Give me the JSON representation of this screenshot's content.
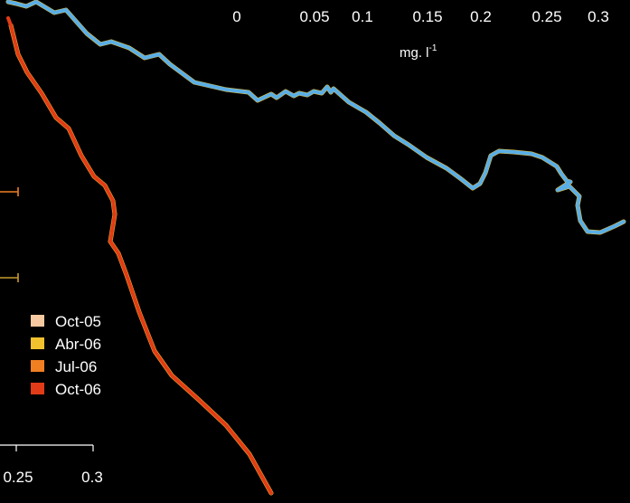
{
  "chart_data": {
    "type": "line",
    "top_axis": {
      "tick_labels": [
        "0",
        "0.05",
        "0.1",
        "0.15",
        "0.2",
        "0.25",
        "0.3"
      ],
      "ticks": [
        0,
        0.05,
        0.1,
        0.15,
        0.2,
        0.25,
        0.3
      ],
      "unit_base": "mg. l",
      "unit_exponent": "-1"
    },
    "bottom_axis": {
      "tick_labels": [
        "0.25",
        "0.3"
      ],
      "ticks": [
        0.25,
        0.3
      ]
    },
    "legend": {
      "entries": [
        {
          "label": "Oct-05",
          "color": "#f7c9a0"
        },
        {
          "label": "Abr-06",
          "color": "#f2c12e"
        },
        {
          "label": "Jul-06",
          "color": "#f07f22"
        },
        {
          "label": "Oct-06",
          "color": "#e23b17"
        }
      ]
    },
    "series": [
      {
        "color": "#f2c12e",
        "values": [
          [
            0.009,
            2
          ],
          [
            0.018,
            4
          ],
          [
            0.029,
            7
          ],
          [
            0.04,
            2
          ],
          [
            0.06,
            14
          ],
          [
            0.073,
            11
          ],
          [
            0.096,
            37
          ],
          [
            0.111,
            49
          ],
          [
            0.123,
            46
          ],
          [
            0.143,
            53
          ],
          [
            0.16,
            64
          ],
          [
            0.176,
            60
          ],
          [
            0.188,
            71
          ],
          [
            0.215,
            91
          ],
          [
            0.25,
            99
          ],
          [
            0.275,
            102
          ],
          [
            0.285,
            111
          ],
          [
            0.3,
            104
          ],
          [
            0.306,
            108
          ],
          [
            0.316,
            101
          ],
          [
            0.325,
            106
          ],
          [
            0.331,
            103
          ],
          [
            0.34,
            105
          ],
          [
            0.347,
            101
          ],
          [
            0.356,
            103
          ],
          [
            0.362,
            96
          ],
          [
            0.366,
            102
          ],
          [
            0.369,
            98
          ],
          [
            0.386,
            113
          ],
          [
            0.405,
            124
          ],
          [
            0.42,
            136
          ],
          [
            0.436,
            150
          ],
          [
            0.452,
            160
          ],
          [
            0.472,
            174
          ],
          [
            0.494,
            186
          ],
          [
            0.509,
            197
          ],
          [
            0.523,
            208
          ],
          [
            0.531,
            203
          ],
          [
            0.537,
            191
          ],
          [
            0.543,
            172
          ],
          [
            0.552,
            167
          ],
          [
            0.568,
            168
          ],
          [
            0.588,
            170
          ],
          [
            0.6,
            174
          ],
          [
            0.616,
            184
          ],
          [
            0.621,
            192
          ],
          [
            0.627,
            200
          ],
          [
            0.631,
            201
          ],
          [
            0.617,
            210
          ],
          [
            0.63,
            206
          ],
          [
            0.641,
            217
          ],
          [
            0.639,
            227
          ],
          [
            0.642,
            244
          ],
          [
            0.65,
            256
          ],
          [
            0.664,
            257
          ],
          [
            0.68,
            250
          ],
          [
            0.69,
            245
          ]
        ]
      },
      {
        "color": "#5aaee6",
        "values": [
          [
            0.009,
            2
          ],
          [
            0.018,
            4
          ],
          [
            0.029,
            7
          ],
          [
            0.04,
            2
          ],
          [
            0.06,
            14
          ],
          [
            0.073,
            11
          ],
          [
            0.096,
            37
          ],
          [
            0.111,
            49
          ],
          [
            0.123,
            46
          ],
          [
            0.143,
            53
          ],
          [
            0.16,
            64
          ],
          [
            0.176,
            60
          ],
          [
            0.188,
            71
          ],
          [
            0.215,
            91
          ],
          [
            0.25,
            99
          ],
          [
            0.275,
            102
          ],
          [
            0.285,
            111
          ],
          [
            0.3,
            104
          ],
          [
            0.306,
            108
          ],
          [
            0.316,
            101
          ],
          [
            0.325,
            106
          ],
          [
            0.331,
            103
          ],
          [
            0.34,
            105
          ],
          [
            0.347,
            101
          ],
          [
            0.356,
            103
          ],
          [
            0.362,
            96
          ],
          [
            0.366,
            102
          ],
          [
            0.369,
            98
          ],
          [
            0.386,
            113
          ],
          [
            0.405,
            124
          ],
          [
            0.42,
            136
          ],
          [
            0.436,
            150
          ],
          [
            0.452,
            160
          ],
          [
            0.472,
            174
          ],
          [
            0.494,
            186
          ],
          [
            0.509,
            197
          ],
          [
            0.523,
            208
          ],
          [
            0.531,
            203
          ],
          [
            0.537,
            191
          ],
          [
            0.543,
            172
          ],
          [
            0.552,
            167
          ],
          [
            0.568,
            168
          ],
          [
            0.588,
            170
          ],
          [
            0.6,
            174
          ],
          [
            0.616,
            184
          ],
          [
            0.621,
            192
          ],
          [
            0.627,
            200
          ],
          [
            0.631,
            201
          ],
          [
            0.617,
            210
          ],
          [
            0.63,
            206
          ],
          [
            0.641,
            217
          ],
          [
            0.639,
            227
          ],
          [
            0.642,
            244
          ],
          [
            0.65,
            256
          ],
          [
            0.664,
            257
          ],
          [
            0.68,
            250
          ],
          [
            0.69,
            245
          ]
        ]
      },
      {
        "color": "#f2c12e",
        "values": [
          [
            0.012,
            28
          ],
          [
            0.02,
            60
          ],
          [
            0.03,
            80
          ],
          [
            0.046,
            103
          ],
          [
            0.062,
            130
          ],
          [
            0.076,
            142
          ],
          [
            0.09,
            172
          ],
          [
            0.104,
            195
          ],
          [
            0.116,
            205
          ],
          [
            0.125,
            222
          ],
          [
            0.127,
            237
          ],
          [
            0.122,
            267
          ],
          [
            0.131,
            280
          ],
          [
            0.14,
            304
          ],
          [
            0.154,
            345
          ],
          [
            0.171,
            388
          ],
          [
            0.19,
            415
          ],
          [
            0.22,
            442
          ],
          [
            0.25,
            470
          ],
          [
            0.276,
            502
          ],
          [
            0.3,
            545
          ]
        ]
      },
      {
        "color": "#e23b17",
        "values": [
          [
            0.009,
            20
          ],
          [
            0.012,
            28
          ],
          [
            0.02,
            60
          ],
          [
            0.03,
            80
          ],
          [
            0.046,
            103
          ],
          [
            0.062,
            130
          ],
          [
            0.076,
            142
          ],
          [
            0.09,
            172
          ],
          [
            0.104,
            195
          ],
          [
            0.116,
            205
          ],
          [
            0.125,
            222
          ],
          [
            0.127,
            237
          ],
          [
            0.122,
            267
          ],
          [
            0.131,
            280
          ],
          [
            0.14,
            304
          ],
          [
            0.154,
            345
          ],
          [
            0.171,
            388
          ],
          [
            0.19,
            415
          ],
          [
            0.22,
            442
          ],
          [
            0.25,
            470
          ],
          [
            0.276,
            502
          ],
          [
            0.3,
            545
          ]
        ]
      }
    ],
    "left_markers": [
      {
        "level": 212,
        "color": "#f07f22"
      },
      {
        "level": 307,
        "color": "#c99a2e"
      }
    ]
  }
}
